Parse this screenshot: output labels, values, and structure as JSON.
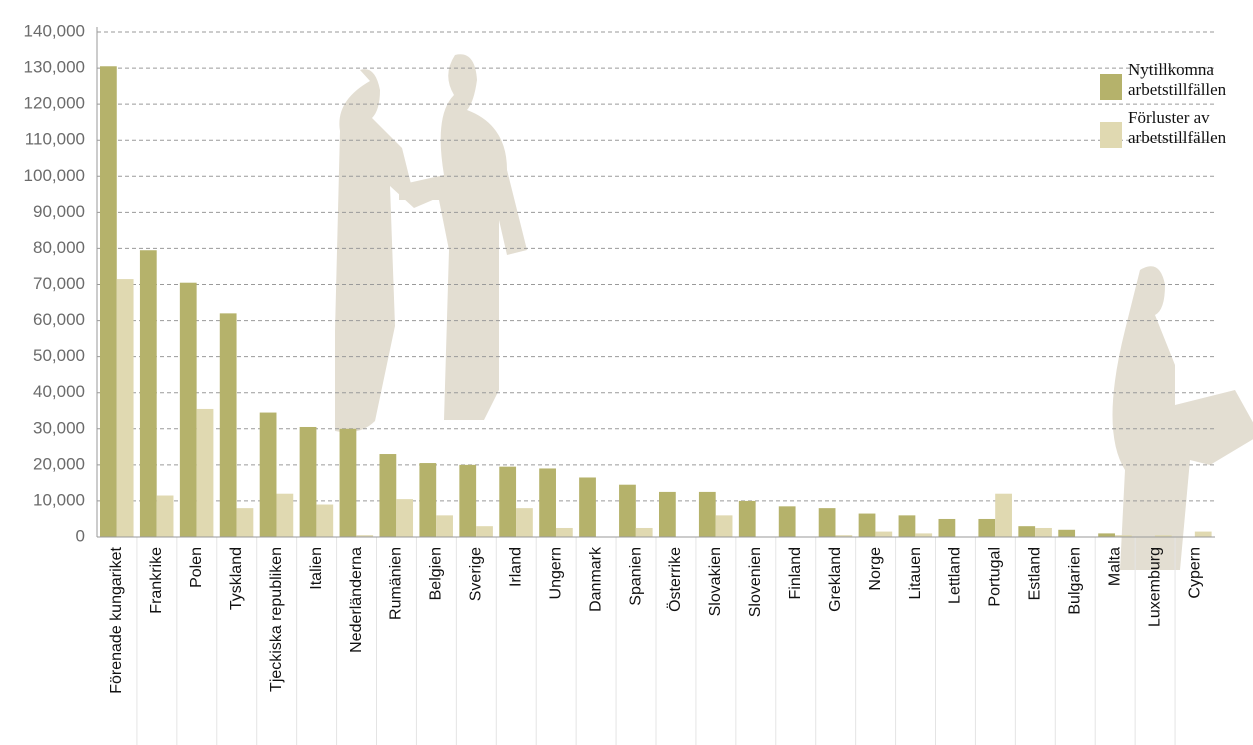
{
  "chart_data": {
    "type": "bar",
    "categories": [
      "Förenade kungariket",
      "Frankrike",
      "Polen",
      "Tyskland",
      "Tjeckiska republiken",
      "Italien",
      "Nederländerna",
      "Rumänien",
      "Belgien",
      "Sverige",
      "Irland",
      "Ungern",
      "Danmark",
      "Spanien",
      "Österrike",
      "Slovakien",
      "Slovenien",
      "Finland",
      "Grekland",
      "Norge",
      "Litauen",
      "Lettland",
      "Portugal",
      "Estland",
      "Bulgarien",
      "Malta",
      "Luxemburg",
      "Cypern"
    ],
    "series": [
      {
        "name": "Nytillkomna arbetstillfällen",
        "color": "#b5b26b",
        "values": [
          130500,
          79500,
          70500,
          62000,
          34500,
          30500,
          30000,
          23000,
          20500,
          20000,
          19500,
          19000,
          16500,
          14500,
          12500,
          12500,
          10000,
          8500,
          8000,
          6500,
          6000,
          5000,
          5000,
          3000,
          2000,
          1000,
          0,
          0
        ]
      },
      {
        "name": "Förluster av arbetstillfällen",
        "color": "#e0d9b1",
        "values": [
          71500,
          11500,
          35500,
          8000,
          12000,
          9000,
          500,
          10500,
          6000,
          3000,
          8000,
          2500,
          0,
          2500,
          0,
          6000,
          0,
          0,
          500,
          1500,
          1000,
          0,
          12000,
          2500,
          0,
          500,
          500,
          1500
        ]
      }
    ],
    "ylim": [
      0,
      140000
    ],
    "yticks": [
      0,
      {
        "value": 10000,
        "label": "10,000"
      },
      {
        "value": 20000,
        "label": "20,000"
      },
      {
        "value": 30000,
        "label": "30,000"
      },
      {
        "value": 40000,
        "label": "40,000"
      },
      {
        "value": 50000,
        "label": "50,000"
      },
      {
        "value": 60000,
        "label": "60,000"
      },
      {
        "value": 70000,
        "label": "70,000"
      },
      {
        "value": 80000,
        "label": "80,000"
      },
      {
        "value": 90000,
        "label": "90,000"
      },
      {
        "value": 100000,
        "label": "100,000"
      },
      {
        "value": 110000,
        "label": "110,000"
      },
      {
        "value": 120000,
        "label": "120,000"
      },
      {
        "value": 130000,
        "label": "130,000"
      },
      {
        "value": 140000,
        "label": "140,000"
      }
    ],
    "grid": true
  }
}
